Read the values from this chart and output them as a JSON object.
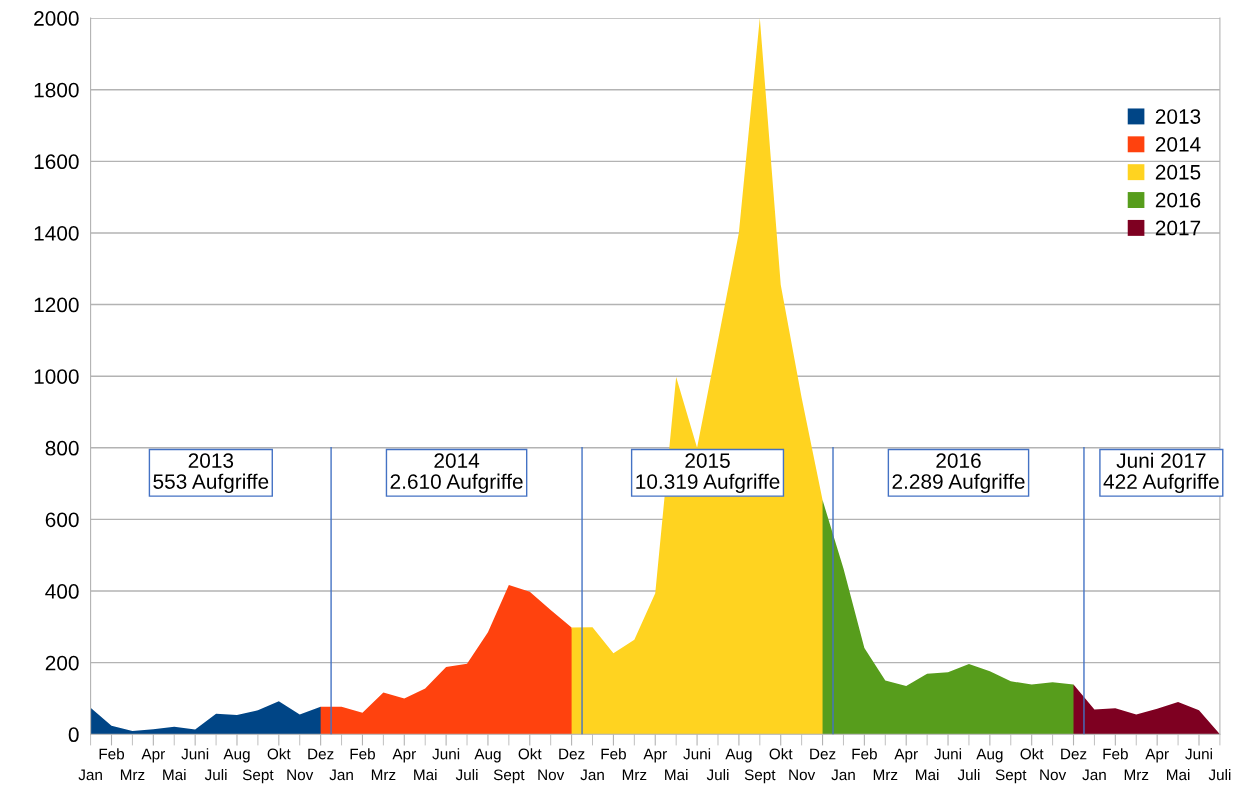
{
  "chart_data": {
    "type": "area",
    "categories": [
      "Jan",
      "Feb",
      "Mrz",
      "Apr",
      "Mai",
      "Juni",
      "Juli",
      "Aug",
      "Sept",
      "Okt",
      "Nov",
      "Dez",
      "Jan",
      "Feb",
      "Mrz",
      "Apr",
      "Mai",
      "Juni",
      "Juli",
      "Aug",
      "Sept",
      "Okt",
      "Nov",
      "Dez",
      "Jan",
      "Feb",
      "Mrz",
      "Apr",
      "Mai",
      "Juni",
      "Juli",
      "Aug",
      "Sept",
      "Okt",
      "Nov",
      "Dez",
      "Jan",
      "Feb",
      "Mrz",
      "Apr",
      "Mai",
      "Juni",
      "Juli",
      "Aug",
      "Sept",
      "Okt",
      "Nov",
      "Dez",
      "Jan",
      "Feb",
      "Mrz",
      "Apr",
      "Mai",
      "Juni",
      "Juli"
    ],
    "series": [
      {
        "name": "2013",
        "color": "#004586",
        "values": [
          74,
          24,
          9,
          14,
          21,
          13,
          57,
          54,
          67,
          92,
          55,
          77,
          0,
          null,
          null,
          null,
          null,
          null,
          null,
          null,
          null,
          null,
          null,
          null,
          null,
          null,
          null,
          null,
          null,
          null,
          null,
          null,
          null,
          null,
          null,
          null,
          null,
          null,
          null,
          null,
          null,
          null,
          null,
          null,
          null,
          null,
          null,
          null,
          null,
          null,
          null,
          null,
          null,
          null,
          null
        ]
      },
      {
        "name": "2014",
        "color": "#ff420e",
        "values": [
          null,
          null,
          null,
          null,
          null,
          null,
          null,
          null,
          null,
          null,
          null,
          77,
          77,
          60,
          117,
          100,
          128,
          188,
          197,
          285,
          417,
          398,
          347,
          298,
          0,
          null,
          null,
          null,
          null,
          null,
          null,
          null,
          null,
          null,
          null,
          null,
          null,
          null,
          null,
          null,
          null,
          null,
          null,
          null,
          null,
          null,
          null,
          null,
          null,
          null,
          null,
          null,
          null,
          null,
          null
        ]
      },
      {
        "name": "2015",
        "color": "#ffd320",
        "values": [
          null,
          null,
          null,
          null,
          null,
          null,
          null,
          null,
          null,
          null,
          null,
          null,
          null,
          null,
          null,
          null,
          null,
          null,
          null,
          null,
          null,
          null,
          null,
          298,
          299,
          226,
          264,
          394,
          998,
          800,
          1100,
          1401,
          2000,
          1255,
          940,
          654,
          0,
          null,
          null,
          null,
          null,
          null,
          null,
          null,
          null,
          null,
          null,
          null,
          null,
          null,
          null,
          null,
          null,
          null,
          null
        ]
      },
      {
        "name": "2016",
        "color": "#579d1c",
        "values": [
          null,
          null,
          null,
          null,
          null,
          null,
          null,
          null,
          null,
          null,
          null,
          null,
          null,
          null,
          null,
          null,
          null,
          null,
          null,
          null,
          null,
          null,
          null,
          null,
          null,
          null,
          null,
          null,
          null,
          null,
          null,
          null,
          null,
          null,
          null,
          654,
          463,
          241,
          150,
          135,
          169,
          173,
          196,
          176,
          148,
          139,
          145,
          139,
          0,
          null,
          null,
          null,
          null,
          null,
          null
        ]
      },
      {
        "name": "2017",
        "color": "#7e0021",
        "values": [
          null,
          null,
          null,
          null,
          null,
          null,
          null,
          null,
          null,
          null,
          null,
          null,
          null,
          null,
          null,
          null,
          null,
          null,
          null,
          null,
          null,
          null,
          null,
          null,
          null,
          null,
          null,
          null,
          null,
          null,
          null,
          null,
          null,
          null,
          null,
          null,
          null,
          null,
          null,
          null,
          null,
          null,
          null,
          null,
          null,
          null,
          null,
          139,
          69,
          73,
          55,
          71,
          90,
          67,
          0
        ]
      }
    ],
    "ylim": [
      0,
      2000
    ],
    "yticks": [
      0,
      200,
      400,
      600,
      800,
      1000,
      1200,
      1400,
      1600,
      1800,
      2000
    ],
    "grid": "y",
    "legend": "upper right",
    "annotations": [
      "2013\n553 Aufgriffe",
      "2014\n2.610 Aufgriffe",
      "2015\n10.319 Aufgriffe",
      "2016\n2.289 Aufgriffe",
      "Juni 2017\n422 Aufgriffe"
    ]
  }
}
